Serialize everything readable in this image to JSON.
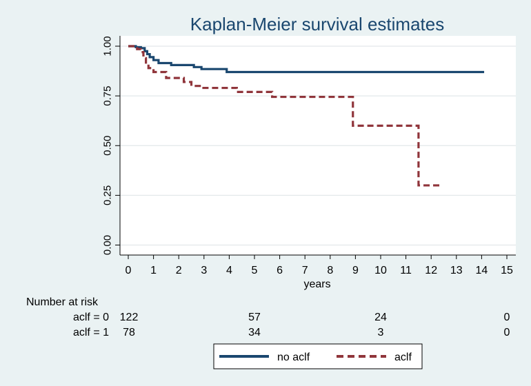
{
  "chart_data": {
    "type": "line",
    "title": "Kaplan-Meier survival estimates",
    "xlabel": "years",
    "ylabel": "",
    "xlim": [
      0,
      15
    ],
    "ylim": [
      0,
      1
    ],
    "xticks": [
      "0",
      "1",
      "2",
      "3",
      "4",
      "5",
      "6",
      "7",
      "8",
      "9",
      "10",
      "11",
      "12",
      "13",
      "14",
      "15"
    ],
    "yticks": [
      "0.00",
      "0.25",
      "0.50",
      "0.75",
      "1.00"
    ],
    "grid": true,
    "legend_position": "bottom",
    "colors": {
      "no_aclf": "#1a476f",
      "aclf": "#90353b",
      "background": "#eaf2f3",
      "plot": "#ffffff"
    },
    "series": [
      {
        "name": "no aclf",
        "style": "solid",
        "x": [
          0,
          0.3,
          0.5,
          0.65,
          0.75,
          0.85,
          1.0,
          1.2,
          1.7,
          2.6,
          2.9,
          3.9,
          14.1
        ],
        "y": [
          1.0,
          0.995,
          0.99,
          0.975,
          0.96,
          0.945,
          0.93,
          0.915,
          0.905,
          0.895,
          0.885,
          0.87,
          0.87
        ]
      },
      {
        "name": "aclf",
        "style": "dashed",
        "x": [
          0,
          0.35,
          0.5,
          0.6,
          0.7,
          0.8,
          1.0,
          1.5,
          2.2,
          2.5,
          2.9,
          4.3,
          5.7,
          8.9,
          11.5,
          12.4
        ],
        "y": [
          1.0,
          0.985,
          0.97,
          0.94,
          0.91,
          0.89,
          0.87,
          0.84,
          0.82,
          0.8,
          0.79,
          0.77,
          0.745,
          0.6,
          0.3,
          0.3
        ]
      }
    ],
    "risk_table": {
      "header": "Number at risk",
      "times": [
        0,
        5,
        10,
        15
      ],
      "rows": [
        {
          "label": "aclf = 0",
          "values": [
            "122",
            "57",
            "24",
            "0"
          ]
        },
        {
          "label": "aclf = 1",
          "values": [
            "78",
            "34",
            "3",
            "0"
          ]
        }
      ]
    }
  }
}
